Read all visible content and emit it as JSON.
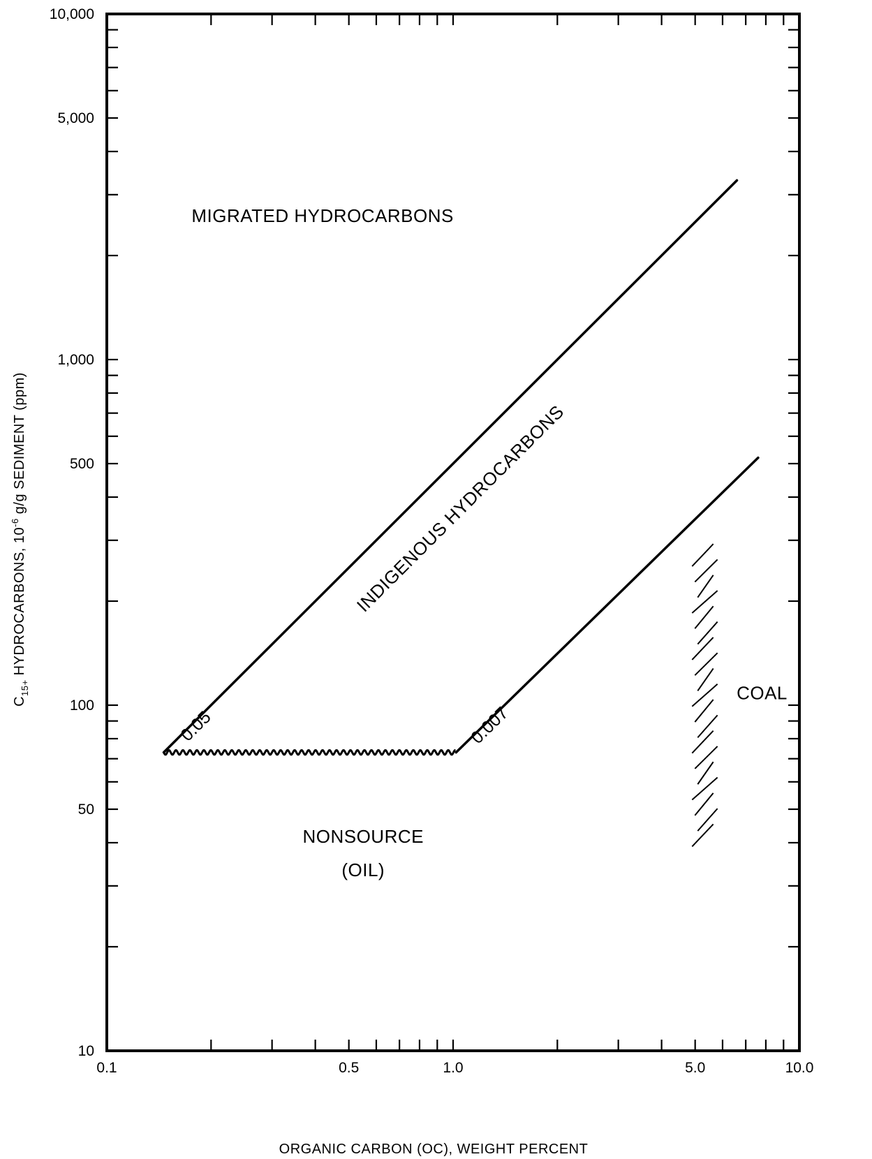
{
  "chart_data": {
    "type": "line",
    "title": "",
    "xlabel": "ORGANIC CARBON (OC), WEIGHT PERCENT",
    "ylabel": {
      "prefix": "C",
      "subscript": "15+",
      "middle": " HYDROCARBONS, 10",
      "superscript": "-6",
      "suffix": " g/g  SEDIMENT (ppm)"
    },
    "x_scale": "log",
    "y_scale": "log",
    "xlim": [
      0.1,
      10
    ],
    "ylim": [
      10,
      10000
    ],
    "x_tick_labels": [
      {
        "value": 0.1,
        "label": "0.1"
      },
      {
        "value": 0.5,
        "label": "0.5"
      },
      {
        "value": 1,
        "label": "1.0"
      },
      {
        "value": 5,
        "label": "5.0"
      },
      {
        "value": 10,
        "label": "10.0"
      }
    ],
    "x_minor_ticks": [
      0.2,
      0.3,
      0.4,
      0.5,
      0.6,
      0.7,
      0.8,
      0.9,
      2,
      3,
      4,
      5,
      6,
      7,
      8,
      9
    ],
    "y_tick_labels": [
      {
        "value": 10,
        "label": "10"
      },
      {
        "value": 50,
        "label": "50"
      },
      {
        "value": 100,
        "label": "100"
      },
      {
        "value": 500,
        "label": "500"
      },
      {
        "value": 1000,
        "label": "1,000"
      },
      {
        "value": 5000,
        "label": "5,000"
      },
      {
        "value": 10000,
        "label": "10,000"
      }
    ],
    "y_minor_ticks": [
      20,
      30,
      40,
      50,
      60,
      70,
      80,
      90,
      200,
      300,
      400,
      500,
      600,
      700,
      800,
      900,
      2000,
      3000,
      4000,
      5000,
      6000,
      7000,
      8000,
      9000
    ],
    "grid": false,
    "series": [
      {
        "label": "0.05",
        "x": [
          0.146,
          6.6
        ],
        "y": [
          73,
          3300
        ]
      },
      {
        "label": "0.007",
        "x": [
          1.02,
          7.6
        ],
        "y": [
          73,
          520
        ]
      }
    ],
    "nonsource_boundary": {
      "x": [
        0.146,
        1.02
      ],
      "y": [
        73,
        73
      ],
      "style": "wavy"
    },
    "coal_band": {
      "x_range": [
        4.9,
        5.8
      ],
      "y_range": [
        39,
        290
      ]
    },
    "region_labels": [
      {
        "text": "MIGRATED HYDROCARBONS",
        "x": 0.42,
        "y": 2500,
        "rotated": false
      },
      {
        "text": "INDIGENOUS HYDROCARBONS",
        "x": 1.08,
        "y": 360,
        "rotated": true
      },
      {
        "text": "NONSOURCE",
        "x": 0.55,
        "y": 40,
        "rotated": false
      },
      {
        "text": "(OIL)",
        "x": 0.55,
        "y": 32,
        "rotated": false
      },
      {
        "text": "COAL",
        "x": 7.8,
        "y": 104,
        "rotated": false
      }
    ]
  }
}
